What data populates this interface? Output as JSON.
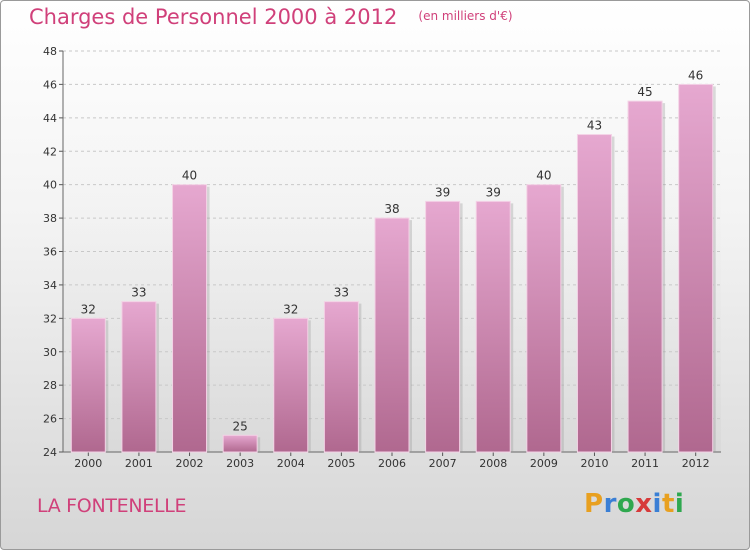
{
  "header": {
    "title": "Charges de Personnel 2000 à 2012",
    "unit": "(en milliers d'€)"
  },
  "footer": {
    "commune": "LA FONTENELLE",
    "logo": "Proxiti"
  },
  "colors": {
    "accent": "#d0407a",
    "bar_top": "#e6a8d0",
    "bar_bottom": "#b0688f"
  },
  "chart_data": {
    "type": "bar",
    "title": "Charges de Personnel 2000 à 2012",
    "subtitle": "(en milliers d'€)",
    "categories": [
      "2000",
      "2001",
      "2002",
      "2003",
      "2004",
      "2005",
      "2006",
      "2007",
      "2008",
      "2009",
      "2010",
      "2011",
      "2012"
    ],
    "values": [
      32,
      33,
      40,
      25,
      32,
      33,
      38,
      39,
      39,
      40,
      43,
      45,
      46
    ],
    "ylim": [
      24,
      48
    ],
    "yticks": [
      24,
      26,
      28,
      30,
      32,
      34,
      36,
      38,
      40,
      42,
      44,
      46,
      48
    ],
    "grid": true,
    "data_labels": true
  }
}
